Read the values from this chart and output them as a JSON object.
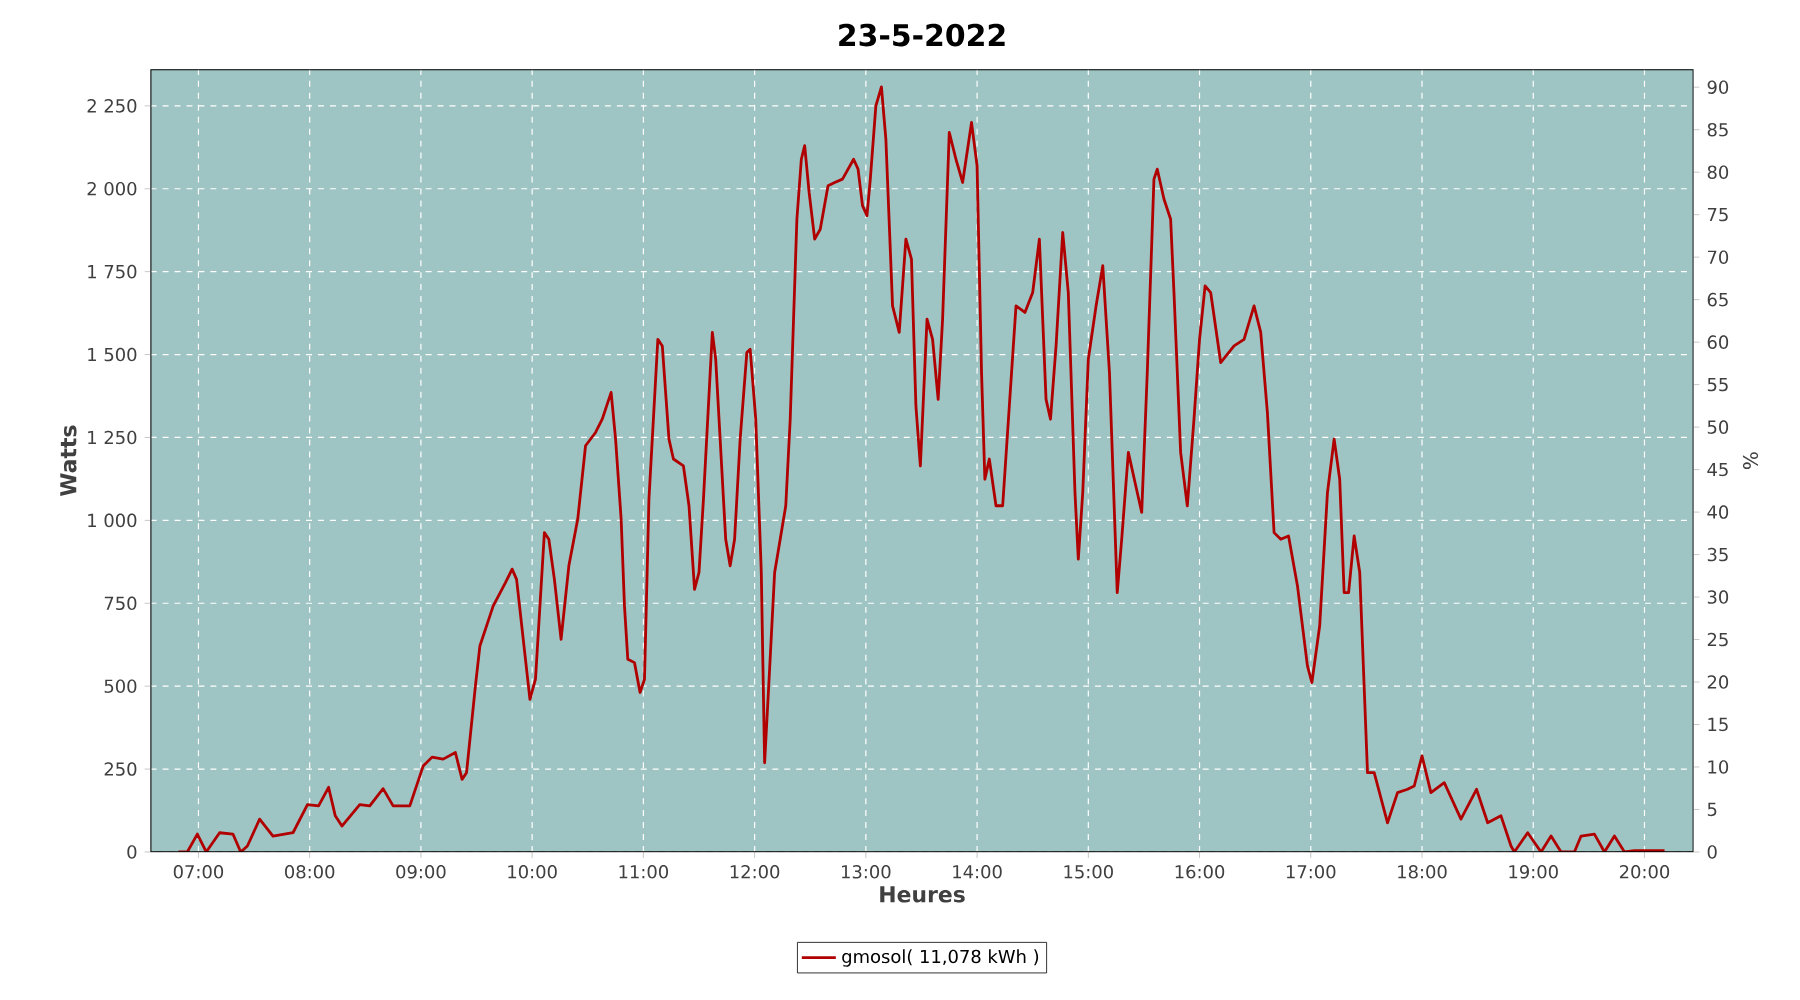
{
  "chart_data": {
    "type": "line",
    "title": "23-5-2022",
    "xlabel": "Heures",
    "ylabel": "Watts",
    "y2label": "%",
    "xlim": [
      6.57,
      20.44
    ],
    "xticks": [
      {
        "value": 7,
        "label": "07:00"
      },
      {
        "value": 8,
        "label": "08:00"
      },
      {
        "value": 9,
        "label": "09:00"
      },
      {
        "value": 10,
        "label": "10:00"
      },
      {
        "value": 11,
        "label": "11:00"
      },
      {
        "value": 12,
        "label": "12:00"
      },
      {
        "value": 13,
        "label": "13:00"
      },
      {
        "value": 14,
        "label": "14:00"
      },
      {
        "value": 15,
        "label": "15:00"
      },
      {
        "value": 16,
        "label": "16:00"
      },
      {
        "value": 17,
        "label": "17:00"
      },
      {
        "value": 18,
        "label": "18:00"
      },
      {
        "value": 19,
        "label": "19:00"
      },
      {
        "value": 20,
        "label": "20:00"
      }
    ],
    "ylim": [
      0,
      2360
    ],
    "yticks": [
      0,
      250,
      500,
      750,
      {
        "value": 1000,
        "label": "1 000"
      },
      {
        "value": 1250,
        "label": "1 250"
      },
      {
        "value": 1500,
        "label": "1 500"
      },
      {
        "value": 1750,
        "label": "1 750"
      },
      {
        "value": 2000,
        "label": "2 000"
      },
      {
        "value": 2250,
        "label": "2 250"
      }
    ],
    "y2lim": [
      0,
      92.1
    ],
    "y2ticks": [
      0,
      5,
      10,
      15,
      20,
      25,
      30,
      35,
      40,
      45,
      50,
      55,
      60,
      65,
      70,
      75,
      80,
      85,
      90
    ],
    "grid": true,
    "legend": "bottom",
    "series": [
      {
        "name": "gmosol( 11,078 kWh )",
        "color": "#b00000",
        "x": [
          6.82,
          6.9,
          6.99,
          7.07,
          7.19,
          7.31,
          7.38,
          7.44,
          7.55,
          7.67,
          7.85,
          7.98,
          8.08,
          8.17,
          8.23,
          8.29,
          8.45,
          8.54,
          8.66,
          8.75,
          8.9,
          9.02,
          9.1,
          9.2,
          9.31,
          9.37,
          9.41,
          9.49,
          9.53,
          9.65,
          9.76,
          9.82,
          9.86,
          9.92,
          9.98,
          10.03,
          10.11,
          10.15,
          10.2,
          10.26,
          10.33,
          10.41,
          10.48,
          10.57,
          10.63,
          10.71,
          10.75,
          10.8,
          10.83,
          10.86,
          10.92,
          10.97,
          11.01,
          11.05,
          11.13,
          11.17,
          11.23,
          11.27,
          11.36,
          11.41,
          11.46,
          11.5,
          11.54,
          11.62,
          11.65,
          11.69,
          11.74,
          11.78,
          11.82,
          11.87,
          11.93,
          11.96,
          12.01,
          12.06,
          12.09,
          12.13,
          12.18,
          12.23,
          12.28,
          12.32,
          12.35,
          12.38,
          12.42,
          12.45,
          12.49,
          12.54,
          12.59,
          12.66,
          12.72,
          12.79,
          12.89,
          12.93,
          12.97,
          13.01,
          13.04,
          13.09,
          13.14,
          13.18,
          13.24,
          13.3,
          13.36,
          13.41,
          13.45,
          13.49,
          13.55,
          13.6,
          13.65,
          13.69,
          13.75,
          13.81,
          13.87,
          13.95,
          14.0,
          14.04,
          14.07,
          14.11,
          14.17,
          14.23,
          14.29,
          14.35,
          14.43,
          14.5,
          14.56,
          14.62,
          14.66,
          14.71,
          14.77,
          14.82,
          14.88,
          14.91,
          14.95,
          15.0,
          15.07,
          15.13,
          15.19,
          15.26,
          15.3,
          15.36,
          15.44,
          15.48,
          15.53,
          15.59,
          15.62,
          15.68,
          15.74,
          15.77,
          15.83,
          15.89,
          15.95,
          16.0,
          16.05,
          16.1,
          16.19,
          16.31,
          16.4,
          16.49,
          16.55,
          16.61,
          16.67,
          16.73,
          16.8,
          16.88,
          16.97,
          17.01,
          17.08,
          17.15,
          17.21,
          17.26,
          17.3,
          17.34,
          17.39,
          17.44,
          17.51,
          17.57,
          17.69,
          17.78,
          17.87,
          17.93,
          18.0,
          18.08,
          18.2,
          18.35,
          18.49,
          18.59,
          18.71,
          18.8,
          18.83,
          18.95,
          19.07,
          19.16,
          19.25,
          19.37,
          19.43,
          19.55,
          19.64,
          19.73,
          19.82,
          19.91,
          20.18
        ],
        "values": [
          0,
          0,
          54,
          0,
          58,
          54,
          0,
          18,
          99,
          48,
          58,
          143,
          139,
          195,
          109,
          78,
          143,
          139,
          191,
          139,
          139,
          259,
          286,
          280,
          300,
          219,
          239,
          501,
          621,
          742,
          812,
          853,
          822,
          641,
          460,
          521,
          963,
          943,
          822,
          641,
          863,
          1004,
          1225,
          1265,
          1305,
          1386,
          1245,
          1004,
          742,
          581,
          571,
          481,
          521,
          1064,
          1546,
          1526,
          1245,
          1185,
          1164,
          1044,
          792,
          843,
          1064,
          1567,
          1486,
          1245,
          943,
          863,
          943,
          1245,
          1506,
          1516,
          1305,
          843,
          269,
          521,
          843,
          943,
          1044,
          1305,
          1607,
          1908,
          2089,
          2130,
          1989,
          1848,
          1878,
          2009,
          2019,
          2029,
          2089,
          2059,
          1949,
          1919,
          2029,
          2250,
          2307,
          2150,
          1647,
          1567,
          1848,
          1788,
          1345,
          1164,
          1607,
          1546,
          1365,
          1607,
          2170,
          2089,
          2019,
          2200,
          2069,
          1446,
          1124,
          1185,
          1044,
          1044,
          1345,
          1647,
          1627,
          1687,
          1848,
          1365,
          1305,
          1526,
          1868,
          1687,
          1084,
          883,
          1084,
          1486,
          1647,
          1768,
          1446,
          782,
          943,
          1205,
          1084,
          1024,
          1446,
          2029,
          2059,
          1969,
          1908,
          1687,
          1205,
          1044,
          1305,
          1546,
          1707,
          1687,
          1476,
          1526,
          1546,
          1647,
          1567,
          1325,
          963,
          943,
          953,
          803,
          561,
          511,
          682,
          1084,
          1245,
          1124,
          782,
          782,
          953,
          843,
          239,
          239,
          88,
          179,
          189,
          199,
          290,
          179,
          209,
          99,
          189,
          88,
          109,
          18,
          0,
          58,
          0,
          48,
          0,
          0,
          48,
          54,
          0,
          48,
          0,
          4,
          4
        ]
      }
    ]
  }
}
